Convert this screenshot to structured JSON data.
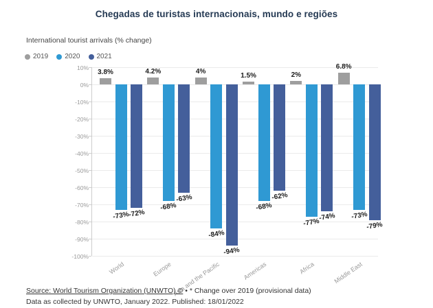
{
  "page": {
    "title": "Chegadas de turistas internacionais, mundo e regiões"
  },
  "chart": {
    "subtitle": "International tourist arrivals (% change)",
    "legend": [
      {
        "label": "2019",
        "color": "#9e9e9e"
      },
      {
        "label": "2020",
        "color": "#2f99d3"
      },
      {
        "label": "2021",
        "color": "#445f9b"
      }
    ]
  },
  "chart_data": {
    "type": "bar",
    "title": "Chegadas de turistas internacionais, mundo e regiões",
    "subtitle": "International tourist arrivals (% change)",
    "categories": [
      "World",
      "Europe",
      "Asia and the Pacific",
      "Americas",
      "Africa",
      "Middle East"
    ],
    "series": [
      {
        "name": "2019",
        "color": "#9e9e9e",
        "values": [
          3.8,
          4.2,
          4,
          1.5,
          2,
          6.8
        ],
        "labels": [
          "3.8%",
          "4.2%",
          "4%",
          "1.5%",
          "2%",
          "6.8%"
        ]
      },
      {
        "name": "2020",
        "color": "#2f99d3",
        "values": [
          -73,
          -68,
          -84,
          -68,
          -77,
          -73
        ],
        "labels": [
          "-73%",
          "-68%",
          "-84%",
          "-68%",
          "-77%",
          "-73%"
        ]
      },
      {
        "name": "2021",
        "color": "#445f9b",
        "values": [
          -72,
          -63,
          -94,
          -62,
          -74,
          -79
        ],
        "labels": [
          "-72%",
          "-63%",
          "-94%",
          "-62%",
          "-74%",
          "-79%"
        ]
      }
    ],
    "xlabel": "",
    "ylabel": "",
    "ylim": [
      -100,
      10
    ],
    "yticks": [
      10,
      0,
      -10,
      -20,
      -30,
      -40,
      -50,
      -60,
      -70,
      -80,
      -90,
      -100
    ],
    "ytick_labels": [
      "10%",
      "0%",
      "-10%",
      "-20%",
      "-30%",
      "-40%",
      "-50%",
      "-60%",
      "-70%",
      "-80%",
      "-90%",
      "-100%"
    ],
    "grid": true,
    "legend_position": "top-left"
  },
  "footer": {
    "source_link": "Source: World Tourism Organization (UNWTO) ©",
    "source_note": " • * Change over 2019 (provisional data)",
    "line2": "Data as collected by UNWTO, January 2022. Published: 18/01/2022"
  }
}
